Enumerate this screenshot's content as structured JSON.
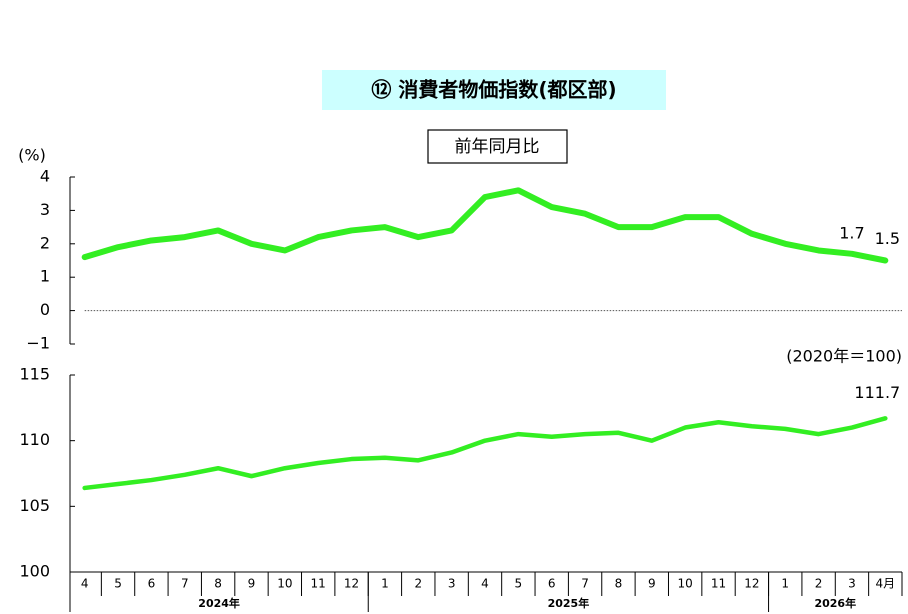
{
  "chart_data": [
    {
      "type": "line",
      "title": "⑫ 消費者物価指数(都区部)",
      "subtitle": "前年同月比",
      "y_label": "(%)",
      "ylim": [
        -1,
        4
      ],
      "yticks": [
        {
          "value": -1,
          "label": "−1"
        },
        0,
        1,
        2,
        3,
        4
      ],
      "series": [
        {
          "color": "#33ee22",
          "values": [
            1.6,
            1.9,
            2.1,
            2.2,
            2.4,
            2.0,
            1.8,
            2.2,
            2.4,
            2.5,
            2.2,
            2.4,
            3.4,
            3.6,
            3.1,
            2.9,
            2.5,
            2.5,
            2.8,
            2.8,
            2.3,
            2.0,
            1.8,
            1.7,
            1.5
          ]
        }
      ]
    },
    {
      "type": "line",
      "unit_note": "(2020年＝100)",
      "ylim": [
        100,
        115
      ],
      "yticks": [
        100,
        105,
        110,
        115
      ],
      "categories": [
        "4",
        "5",
        "6",
        "7",
        "8",
        "9",
        "10",
        "11",
        "12",
        "1",
        "2",
        "3",
        "4",
        "5",
        "6",
        "7",
        "8",
        "9",
        "10",
        "11",
        "12",
        "1",
        "2",
        "3",
        "4月"
      ],
      "x_groups": [
        {
          "label": "2024年",
          "start": 0,
          "end": 8
        },
        {
          "label": "2025年",
          "start": 9,
          "end": 20
        },
        {
          "label": "2026年",
          "start": 21,
          "end": 24
        }
      ],
      "series": [
        {
          "color": "#33ee22",
          "values": [
            106.4,
            106.7,
            107.0,
            107.4,
            107.9,
            107.3,
            107.9,
            108.3,
            108.6,
            108.7,
            108.5,
            109.1,
            110.0,
            110.5,
            110.3,
            110.5,
            110.6,
            110.0,
            111.0,
            111.4,
            111.1,
            110.9,
            110.5,
            111.0,
            111.7
          ]
        }
      ]
    }
  ]
}
